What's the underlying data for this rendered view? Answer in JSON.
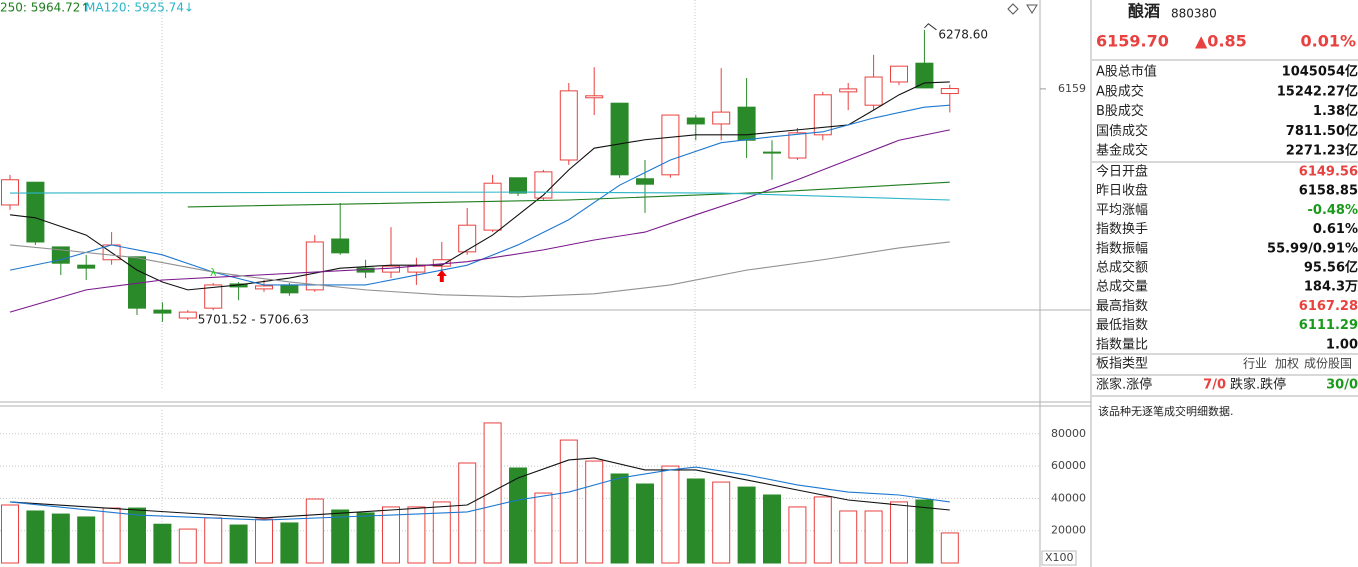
{
  "header": {
    "ma250_label": "250: 5964.72↑",
    "ma120_label": "MA120: 5925.74↓"
  },
  "chart_data": {
    "type": "candlestick",
    "up_color": "#e8413f",
    "down_color": "#2a8a2a",
    "ylim": [
      5529,
      6339
    ],
    "yticks": [
      6159
    ],
    "candles": {
      "open": [
        5924,
        5970,
        5839,
        5802,
        5813,
        5819,
        5711,
        5695,
        5715,
        5764,
        5754,
        5762,
        5752,
        5855,
        5796,
        5788,
        5788,
        5800,
        5829,
        5873,
        5979,
        5938,
        6015,
        6141,
        6130,
        5977,
        5985,
        6100,
        6088,
        6122,
        6031,
        6019,
        6066,
        6153,
        6126,
        6173,
        6211,
        6149.56
      ],
      "high": [
        5985,
        5970,
        5839,
        5823,
        5869,
        5819,
        5727,
        5711,
        5766,
        5768,
        5772,
        5766,
        5863,
        5928,
        5813,
        5879,
        5817,
        5849,
        5918,
        5985,
        5979,
        5995,
        6171,
        6203,
        6130,
        6015,
        6106,
        6106,
        6201,
        6181,
        6055,
        6080,
        6153,
        6171,
        6228,
        6205,
        6278.6,
        6167.28
      ],
      "low": [
        5914,
        5843,
        5782,
        5772,
        5803,
        5701,
        5687,
        5691,
        5711,
        5731,
        5748,
        5740,
        5748,
        5823,
        5776,
        5776,
        5762,
        5782,
        5823,
        5869,
        5942,
        5934,
        6005,
        6106,
        5979,
        5908,
        5979,
        6055,
        6055,
        6019,
        5975,
        6015,
        6055,
        6116,
        6116,
        6167,
        6161,
        6111.29
      ],
      "close": [
        5975,
        5849,
        5806,
        5796,
        5843,
        5715,
        5705,
        5707,
        5762,
        5758,
        5760,
        5746,
        5849,
        5827,
        5788,
        5800,
        5800,
        5813,
        5883,
        5968,
        5948,
        5991,
        6155,
        6145,
        5985,
        5966,
        6106,
        6088,
        6112,
        6055,
        6029,
        6070,
        6147,
        6159,
        6183,
        6205,
        6161,
        6159.7
      ]
    },
    "ma_lines": [
      {
        "color": "#111111",
        "x": [
          0,
          1,
          3,
          5,
          6,
          7,
          9,
          11,
          13,
          15,
          17,
          19,
          21,
          22,
          23,
          25,
          27,
          29,
          31,
          33,
          34,
          35,
          36,
          37
        ],
        "values": [
          5904,
          5898,
          5863,
          5792,
          5768,
          5752,
          5762,
          5776,
          5796,
          5802,
          5802,
          5863,
          5944,
          5995,
          6039,
          6056,
          6066,
          6066,
          6076,
          6086,
          6116,
          6147,
          6171,
          6173
        ]
      },
      {
        "color": "#1e78d0",
        "x": [
          0,
          2,
          4,
          6,
          8,
          10,
          12,
          14,
          16,
          18,
          20,
          22,
          24,
          26,
          28,
          30,
          32,
          34,
          36,
          37
        ],
        "values": [
          5792,
          5813,
          5843,
          5823,
          5788,
          5762,
          5762,
          5762,
          5782,
          5802,
          5843,
          5894,
          5964,
          6015,
          6050,
          6062,
          6072,
          6100,
          6122,
          6126
        ]
      },
      {
        "color": "#7a1a8c",
        "x": [
          0,
          3,
          6,
          9,
          12,
          15,
          18,
          21,
          23,
          25,
          27,
          29,
          31,
          33,
          35,
          37
        ],
        "values": [
          5707,
          5752,
          5772,
          5780,
          5788,
          5796,
          5809,
          5833,
          5853,
          5869,
          5904,
          5938,
          5975,
          6015,
          6055,
          6076
        ]
      },
      {
        "color": "#909090",
        "x": [
          0,
          2,
          5,
          8,
          11,
          14,
          17,
          20,
          23,
          26,
          29,
          32,
          35,
          37
        ],
        "values": [
          5843,
          5833,
          5817,
          5788,
          5768,
          5752,
          5742,
          5738,
          5744,
          5762,
          5792,
          5813,
          5837,
          5849
        ]
      },
      {
        "color": "#1e7d1e",
        "x": [
          7,
          22,
          30,
          37
        ],
        "values": [
          5920,
          5934,
          5950,
          5970
        ]
      },
      {
        "color": "#2bb5c8",
        "x": [
          0,
          20,
          28,
          37
        ],
        "values": [
          5948,
          5950,
          5948,
          5934
        ]
      }
    ],
    "annotations": [
      "6278.60",
      "5701.52 - 5706.63"
    ],
    "volume": {
      "ylim": [
        0,
        97800
      ],
      "yticks": [
        20000,
        40000,
        60000,
        80000
      ],
      "unit": "X100",
      "values": [
        35900,
        32200,
        30300,
        28500,
        34000,
        34000,
        24000,
        21000,
        27900,
        23500,
        27200,
        24800,
        39600,
        32800,
        31000,
        34700,
        34700,
        37800,
        61900,
        86700,
        58800,
        43300,
        76100,
        63100,
        55100,
        48900,
        60000,
        52000,
        50100,
        47000,
        42100,
        34700,
        40900,
        32200,
        32200,
        37800,
        39000,
        18600
      ],
      "ma_lines": [
        {
          "color": "#111111",
          "x": [
            0,
            5,
            10,
            15,
            18,
            20,
            22,
            23,
            25,
            27,
            29,
            31,
            33,
            35,
            37
          ],
          "values": [
            37800,
            32800,
            27900,
            32800,
            35900,
            52600,
            63800,
            65000,
            57600,
            57600,
            51400,
            45200,
            39000,
            35900,
            32800
          ]
        },
        {
          "color": "#1e78d0",
          "x": [
            0,
            5,
            10,
            15,
            18,
            20,
            22,
            24,
            26,
            27,
            29,
            31,
            33,
            35,
            37
          ],
          "values": [
            37800,
            29700,
            26600,
            29700,
            31600,
            39000,
            43900,
            52600,
            57600,
            59400,
            54500,
            48300,
            43900,
            42100,
            37800
          ]
        }
      ]
    }
  },
  "info": {
    "name": "酿酒",
    "code": "880380",
    "price": "6159.70",
    "change": "▲0.85",
    "change_pct": "0.01%",
    "quote_color": "#e8413f",
    "rows": [
      {
        "label": "A股总市值",
        "value": "1045054亿",
        "color": "#111111"
      },
      {
        "label": "A股成交",
        "value": "15242.27亿",
        "color": "#111111"
      },
      {
        "label": "B股成交",
        "value": "1.38亿",
        "color": "#111111"
      },
      {
        "label": "国债成交",
        "value": "7811.50亿",
        "color": "#111111"
      },
      {
        "label": "基金成交",
        "value": "2271.23亿",
        "color": "#111111"
      },
      {
        "label": "今日开盘",
        "value": "6149.56",
        "color": "#e8413f"
      },
      {
        "label": "昨日收盘",
        "value": "6158.85",
        "color": "#111111"
      },
      {
        "label": "平均涨幅",
        "value": "-0.48%",
        "color": "#1a9a1a"
      },
      {
        "label": "指数换手",
        "value": "0.61%",
        "color": "#111111"
      },
      {
        "label": "指数振幅",
        "value": "55.99/0.91%",
        "color": "#111111"
      },
      {
        "label": "总成交额",
        "value": "95.56亿",
        "color": "#111111"
      },
      {
        "label": "总成交量",
        "value": "184.3万",
        "color": "#111111"
      },
      {
        "label": "最高指数",
        "value": "6167.28",
        "color": "#e8413f"
      },
      {
        "label": "最低指数",
        "value": "6111.29",
        "color": "#1a9a1a"
      },
      {
        "label": "指数量比",
        "value": "1.00",
        "color": "#111111"
      }
    ],
    "type_row": {
      "label": "板指类型",
      "options": [
        "行业",
        "加权",
        "成份股国"
      ]
    },
    "limit_row": {
      "up_label": "涨家.涨停",
      "up_value": "7/0",
      "down_label": "跌家.跌停",
      "down_value": "30/0",
      "up_color": "#e8413f",
      "down_color": "#1a9a1a"
    },
    "message": "该品种无逐笔成交明细数据."
  }
}
